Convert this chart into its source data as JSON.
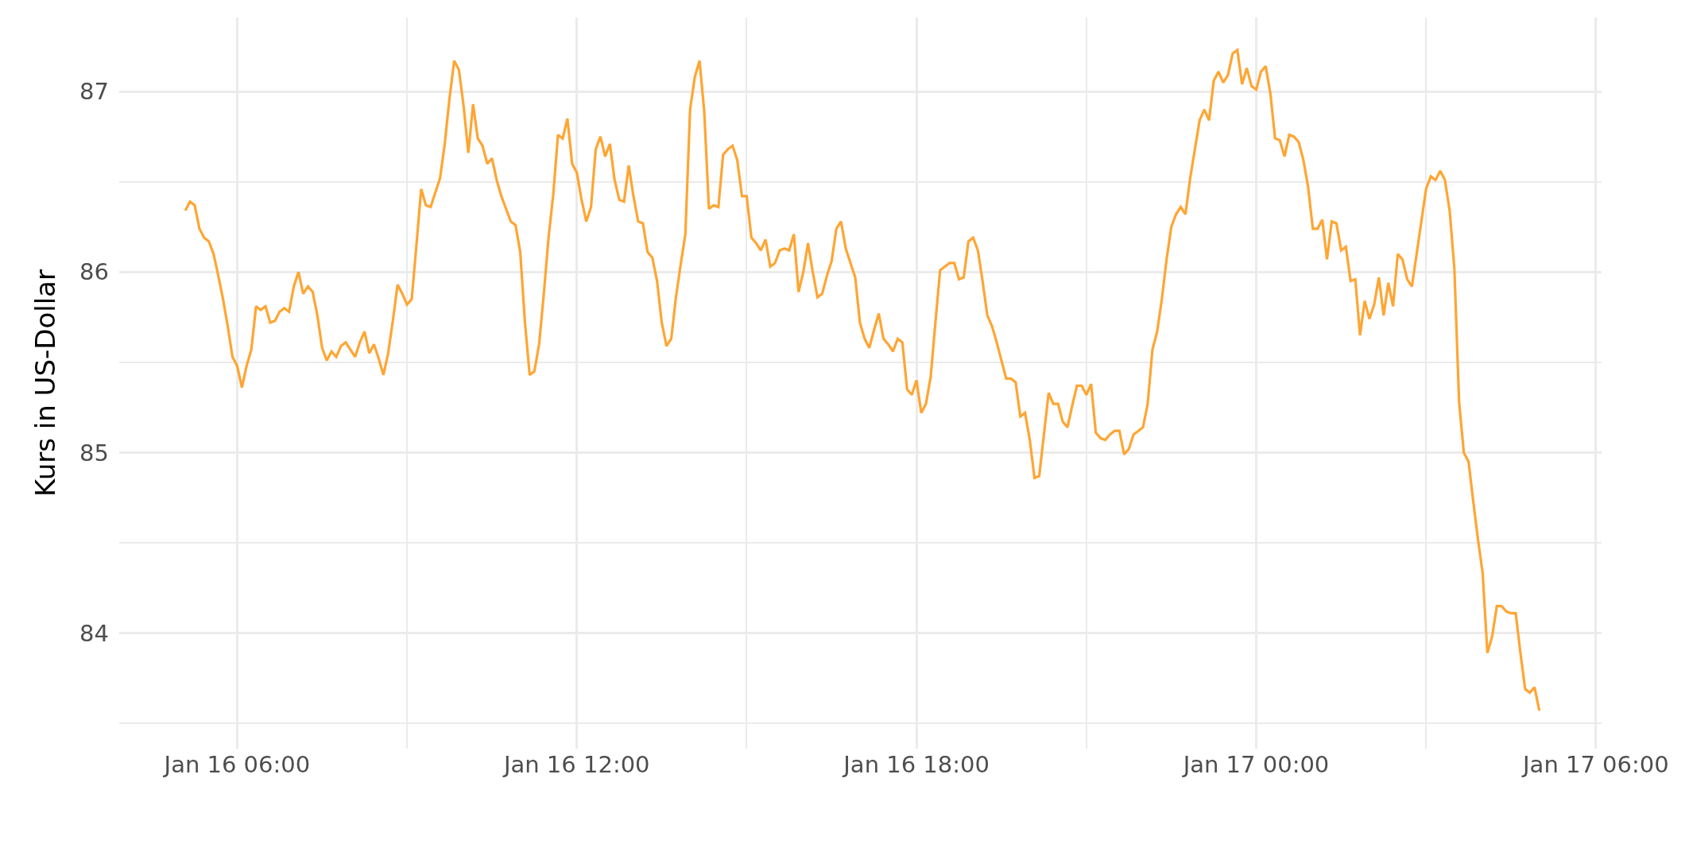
{
  "chart_data": {
    "type": "line",
    "ylabel": "Kurs in US-Dollar",
    "x": [
      "--01-16T05:05",
      "--01-16T05:10",
      "--01-16T05:15",
      "--01-16T05:20",
      "--01-16T05:25",
      "--01-16T05:30",
      "--01-16T05:35",
      "--01-16T05:40",
      "--01-16T05:45",
      "--01-16T05:50",
      "--01-16T05:55",
      "--01-16T06:00",
      "--01-16T06:05",
      "--01-16T06:10",
      "--01-16T06:15",
      "--01-16T06:20",
      "--01-16T06:25",
      "--01-16T06:30",
      "--01-16T06:35",
      "--01-16T06:40",
      "--01-16T06:45",
      "--01-16T06:50",
      "--01-16T06:55",
      "--01-16T07:00",
      "--01-16T07:05",
      "--01-16T07:10",
      "--01-16T07:15",
      "--01-16T07:20",
      "--01-16T07:25",
      "--01-16T07:30",
      "--01-16T07:35",
      "--01-16T07:40",
      "--01-16T07:45",
      "--01-16T07:50",
      "--01-16T07:55",
      "--01-16T08:00",
      "--01-16T08:05",
      "--01-16T08:10",
      "--01-16T08:15",
      "--01-16T08:20",
      "--01-16T08:25",
      "--01-16T08:30",
      "--01-16T08:35",
      "--01-16T08:40",
      "--01-16T08:45",
      "--01-16T08:50",
      "--01-16T08:55",
      "--01-16T09:00",
      "--01-16T09:05",
      "--01-16T09:10",
      "--01-16T09:15",
      "--01-16T09:20",
      "--01-16T09:25",
      "--01-16T09:30",
      "--01-16T09:35",
      "--01-16T09:40",
      "--01-16T09:45",
      "--01-16T09:50",
      "--01-16T09:55",
      "--01-16T10:00",
      "--01-16T10:05",
      "--01-16T10:10",
      "--01-16T10:15",
      "--01-16T10:20",
      "--01-16T10:25",
      "--01-16T10:30",
      "--01-16T10:35",
      "--01-16T10:40",
      "--01-16T10:45",
      "--01-16T10:50",
      "--01-16T10:55",
      "--01-16T11:00",
      "--01-16T11:05",
      "--01-16T11:10",
      "--01-16T11:15",
      "--01-16T11:20",
      "--01-16T11:25",
      "--01-16T11:30",
      "--01-16T11:35",
      "--01-16T11:40",
      "--01-16T11:45",
      "--01-16T11:50",
      "--01-16T11:55",
      "--01-16T12:00",
      "--01-16T12:05",
      "--01-16T12:10",
      "--01-16T12:15",
      "--01-16T12:20",
      "--01-16T12:25",
      "--01-16T12:30",
      "--01-16T12:35",
      "--01-16T12:40",
      "--01-16T12:45",
      "--01-16T12:50",
      "--01-16T12:55",
      "--01-16T13:00",
      "--01-16T13:05",
      "--01-16T13:10",
      "--01-16T13:15",
      "--01-16T13:20",
      "--01-16T13:25",
      "--01-16T13:30",
      "--01-16T13:35",
      "--01-16T13:40",
      "--01-16T13:45",
      "--01-16T13:50",
      "--01-16T13:55",
      "--01-16T14:00",
      "--01-16T14:05",
      "--01-16T14:10",
      "--01-16T14:15",
      "--01-16T14:20",
      "--01-16T14:25",
      "--01-16T14:30",
      "--01-16T14:35",
      "--01-16T14:40",
      "--01-16T14:45",
      "--01-16T14:50",
      "--01-16T14:55",
      "--01-16T15:00",
      "--01-16T15:05",
      "--01-16T15:10",
      "--01-16T15:15",
      "--01-16T15:20",
      "--01-16T15:25",
      "--01-16T15:30",
      "--01-16T15:35",
      "--01-16T15:40",
      "--01-16T15:45",
      "--01-16T15:50",
      "--01-16T15:55",
      "--01-16T16:00",
      "--01-16T16:05",
      "--01-16T16:10",
      "--01-16T16:15",
      "--01-16T16:20",
      "--01-16T16:25",
      "--01-16T16:30",
      "--01-16T16:35",
      "--01-16T16:40",
      "--01-16T16:45",
      "--01-16T16:50",
      "--01-16T16:55",
      "--01-16T17:00",
      "--01-16T17:05",
      "--01-16T17:10",
      "--01-16T17:15",
      "--01-16T17:20",
      "--01-16T17:25",
      "--01-16T17:30",
      "--01-16T17:35",
      "--01-16T17:40",
      "--01-16T17:45",
      "--01-16T17:50",
      "--01-16T17:55",
      "--01-16T18:00",
      "--01-16T18:05",
      "--01-16T18:10",
      "--01-16T18:15",
      "--01-16T18:20",
      "--01-16T18:25",
      "--01-16T18:30",
      "--01-16T18:35",
      "--01-16T18:40",
      "--01-16T18:45",
      "--01-16T18:50",
      "--01-16T18:55",
      "--01-16T19:00",
      "--01-16T19:05",
      "--01-16T19:10",
      "--01-16T19:15",
      "--01-16T19:20",
      "--01-16T19:25",
      "--01-16T19:30",
      "--01-16T19:35",
      "--01-16T19:40",
      "--01-16T19:45",
      "--01-16T19:50",
      "--01-16T19:55",
      "--01-16T20:00",
      "--01-16T20:05",
      "--01-16T20:10",
      "--01-16T20:15",
      "--01-16T20:20",
      "--01-16T20:25",
      "--01-16T20:30",
      "--01-16T20:35",
      "--01-16T20:40",
      "--01-16T20:45",
      "--01-16T20:50",
      "--01-16T20:55",
      "--01-16T21:00",
      "--01-16T21:05",
      "--01-16T21:10",
      "--01-16T21:15",
      "--01-16T21:20",
      "--01-16T21:25",
      "--01-16T21:30",
      "--01-16T21:35",
      "--01-16T21:40",
      "--01-16T21:45",
      "--01-16T21:50",
      "--01-16T21:55",
      "--01-16T22:00",
      "--01-16T22:05",
      "--01-16T22:10",
      "--01-16T22:15",
      "--01-16T22:20",
      "--01-16T22:25",
      "--01-16T22:30",
      "--01-16T22:35",
      "--01-16T22:40",
      "--01-16T22:45",
      "--01-16T22:50",
      "--01-16T22:55",
      "--01-16T23:00",
      "--01-16T23:05",
      "--01-16T23:10",
      "--01-16T23:15",
      "--01-16T23:20",
      "--01-16T23:25",
      "--01-16T23:30",
      "--01-16T23:35",
      "--01-16T23:40",
      "--01-16T23:45",
      "--01-16T23:50",
      "--01-16T23:55",
      "--01-17T00:00",
      "--01-17T00:05",
      "--01-17T00:10",
      "--01-17T00:15",
      "--01-17T00:20",
      "--01-17T00:25",
      "--01-17T00:30",
      "--01-17T00:35",
      "--01-17T00:40",
      "--01-17T00:45",
      "--01-17T00:50",
      "--01-17T00:55",
      "--01-17T01:00",
      "--01-17T01:05",
      "--01-17T01:10",
      "--01-17T01:15",
      "--01-17T01:20",
      "--01-17T01:25",
      "--01-17T01:30",
      "--01-17T01:35",
      "--01-17T01:40",
      "--01-17T01:45",
      "--01-17T01:50",
      "--01-17T01:55",
      "--01-17T02:00",
      "--01-17T02:05",
      "--01-17T02:10",
      "--01-17T02:15",
      "--01-17T02:20",
      "--01-17T02:25",
      "--01-17T02:30",
      "--01-17T02:35",
      "--01-17T02:40",
      "--01-17T02:45",
      "--01-17T02:50",
      "--01-17T02:55",
      "--01-17T03:00",
      "--01-17T03:05",
      "--01-17T03:10",
      "--01-17T03:15",
      "--01-17T03:20",
      "--01-17T03:25",
      "--01-17T03:30",
      "--01-17T03:35",
      "--01-17T03:40",
      "--01-17T03:45",
      "--01-17T03:50",
      "--01-17T03:55",
      "--01-17T04:00",
      "--01-17T04:05",
      "--01-17T04:10",
      "--01-17T04:15",
      "--01-17T04:20",
      "--01-17T04:25",
      "--01-17T04:30",
      "--01-17T04:35",
      "--01-17T04:40",
      "--01-17T04:45",
      "--01-17T04:50",
      "--01-17T04:55",
      "--01-17T05:00"
    ],
    "series": [
      {
        "color": "#ffa533",
        "values": [
          86.34,
          86.39,
          86.37,
          86.24,
          86.19,
          86.17,
          86.1,
          85.98,
          85.85,
          85.7,
          85.53,
          85.48,
          85.36,
          85.48,
          85.57,
          85.81,
          85.79,
          85.81,
          85.72,
          85.73,
          85.78,
          85.8,
          85.78,
          85.92,
          86.0,
          85.88,
          85.92,
          85.89,
          85.76,
          85.58,
          85.51,
          85.56,
          85.53,
          85.59,
          85.61,
          85.57,
          85.53,
          85.61,
          85.67,
          85.55,
          85.6,
          85.52,
          85.43,
          85.55,
          85.73,
          85.93,
          85.88,
          85.82,
          85.85,
          86.15,
          86.46,
          86.37,
          86.36,
          86.44,
          86.52,
          86.71,
          86.96,
          87.17,
          87.12,
          86.92,
          86.66,
          86.93,
          86.74,
          86.7,
          86.6,
          86.63,
          86.51,
          86.42,
          86.35,
          86.28,
          86.26,
          86.11,
          85.72,
          85.43,
          85.45,
          85.6,
          85.88,
          86.19,
          86.43,
          86.76,
          86.74,
          86.85,
          86.6,
          86.55,
          86.4,
          86.28,
          86.36,
          86.68,
          86.75,
          86.64,
          86.71,
          86.51,
          86.4,
          86.39,
          86.59,
          86.42,
          86.28,
          86.27,
          86.11,
          86.08,
          85.95,
          85.72,
          85.59,
          85.63,
          85.86,
          86.04,
          86.21,
          86.9,
          87.08,
          87.17,
          86.89,
          86.35,
          86.37,
          86.36,
          86.65,
          86.68,
          86.7,
          86.62,
          86.42,
          86.42,
          86.19,
          86.16,
          86.12,
          86.18,
          86.03,
          86.05,
          86.12,
          86.13,
          86.12,
          86.21,
          85.89,
          86.0,
          86.16,
          86.0,
          85.86,
          85.88,
          85.98,
          86.06,
          86.24,
          86.28,
          86.13,
          86.05,
          85.97,
          85.72,
          85.63,
          85.58,
          85.68,
          85.77,
          85.63,
          85.6,
          85.56,
          85.63,
          85.61,
          85.35,
          85.32,
          85.4,
          85.22,
          85.27,
          85.42,
          85.72,
          86.01,
          86.03,
          86.05,
          86.05,
          85.96,
          85.97,
          86.17,
          86.19,
          86.12,
          85.95,
          85.76,
          85.7,
          85.61,
          85.51,
          85.41,
          85.41,
          85.39,
          85.2,
          85.22,
          85.07,
          84.86,
          84.87,
          85.1,
          85.33,
          85.27,
          85.27,
          85.17,
          85.14,
          85.26,
          85.37,
          85.37,
          85.32,
          85.38,
          85.11,
          85.08,
          85.07,
          85.1,
          85.12,
          85.12,
          84.99,
          85.02,
          85.1,
          85.12,
          85.14,
          85.27,
          85.57,
          85.67,
          85.85,
          86.07,
          86.25,
          86.32,
          86.36,
          86.32,
          86.52,
          86.68,
          86.84,
          86.9,
          86.84,
          87.06,
          87.11,
          87.05,
          87.09,
          87.21,
          87.23,
          87.04,
          87.13,
          87.03,
          87.01,
          87.11,
          87.14,
          86.99,
          86.74,
          86.73,
          86.64,
          86.76,
          86.75,
          86.72,
          86.62,
          86.47,
          86.24,
          86.24,
          86.29,
          86.07,
          86.28,
          86.27,
          86.12,
          86.14,
          85.95,
          85.96,
          85.65,
          85.84,
          85.74,
          85.82,
          85.97,
          85.76,
          85.94,
          85.81,
          86.1,
          86.07,
          85.96,
          85.92,
          86.1,
          86.28,
          86.46,
          86.53,
          86.51,
          86.56,
          86.51,
          86.34,
          86.02,
          85.28,
          85.0,
          84.95,
          84.73,
          84.52,
          84.33,
          83.89,
          83.98,
          84.15,
          84.15,
          84.12,
          84.11,
          84.11,
          83.89,
          83.69,
          83.67,
          83.7,
          83.57
        ]
      }
    ],
    "xlim": [
      "--01-16T03:55",
      "--01-17T06:06"
    ],
    "xticks": [
      {
        "value": "--01-16T06:00",
        "label": "Jan 16 06:00"
      },
      {
        "value": "--01-16T09:00",
        "label": null
      },
      {
        "value": "--01-16T12:00",
        "label": "Jan 16 12:00"
      },
      {
        "value": "--01-16T15:00",
        "label": null
      },
      {
        "value": "--01-16T18:00",
        "label": "Jan 16 18:00"
      },
      {
        "value": "--01-16T21:00",
        "label": null
      },
      {
        "value": "--01-17T00:00",
        "label": "Jan 17 00:00"
      },
      {
        "value": "--01-17T03:00",
        "label": null
      },
      {
        "value": "--01-17T06:00",
        "label": "Jan 17 06:00"
      }
    ],
    "ylim": [
      83.36,
      87.41
    ],
    "yticks": [
      {
        "value": 83.5,
        "label": null
      },
      84,
      {
        "value": 84.5,
        "label": null
      },
      85,
      {
        "value": 85.5,
        "label": null
      },
      86,
      {
        "value": 86.5,
        "label": null
      },
      87
    ],
    "grid": true
  }
}
